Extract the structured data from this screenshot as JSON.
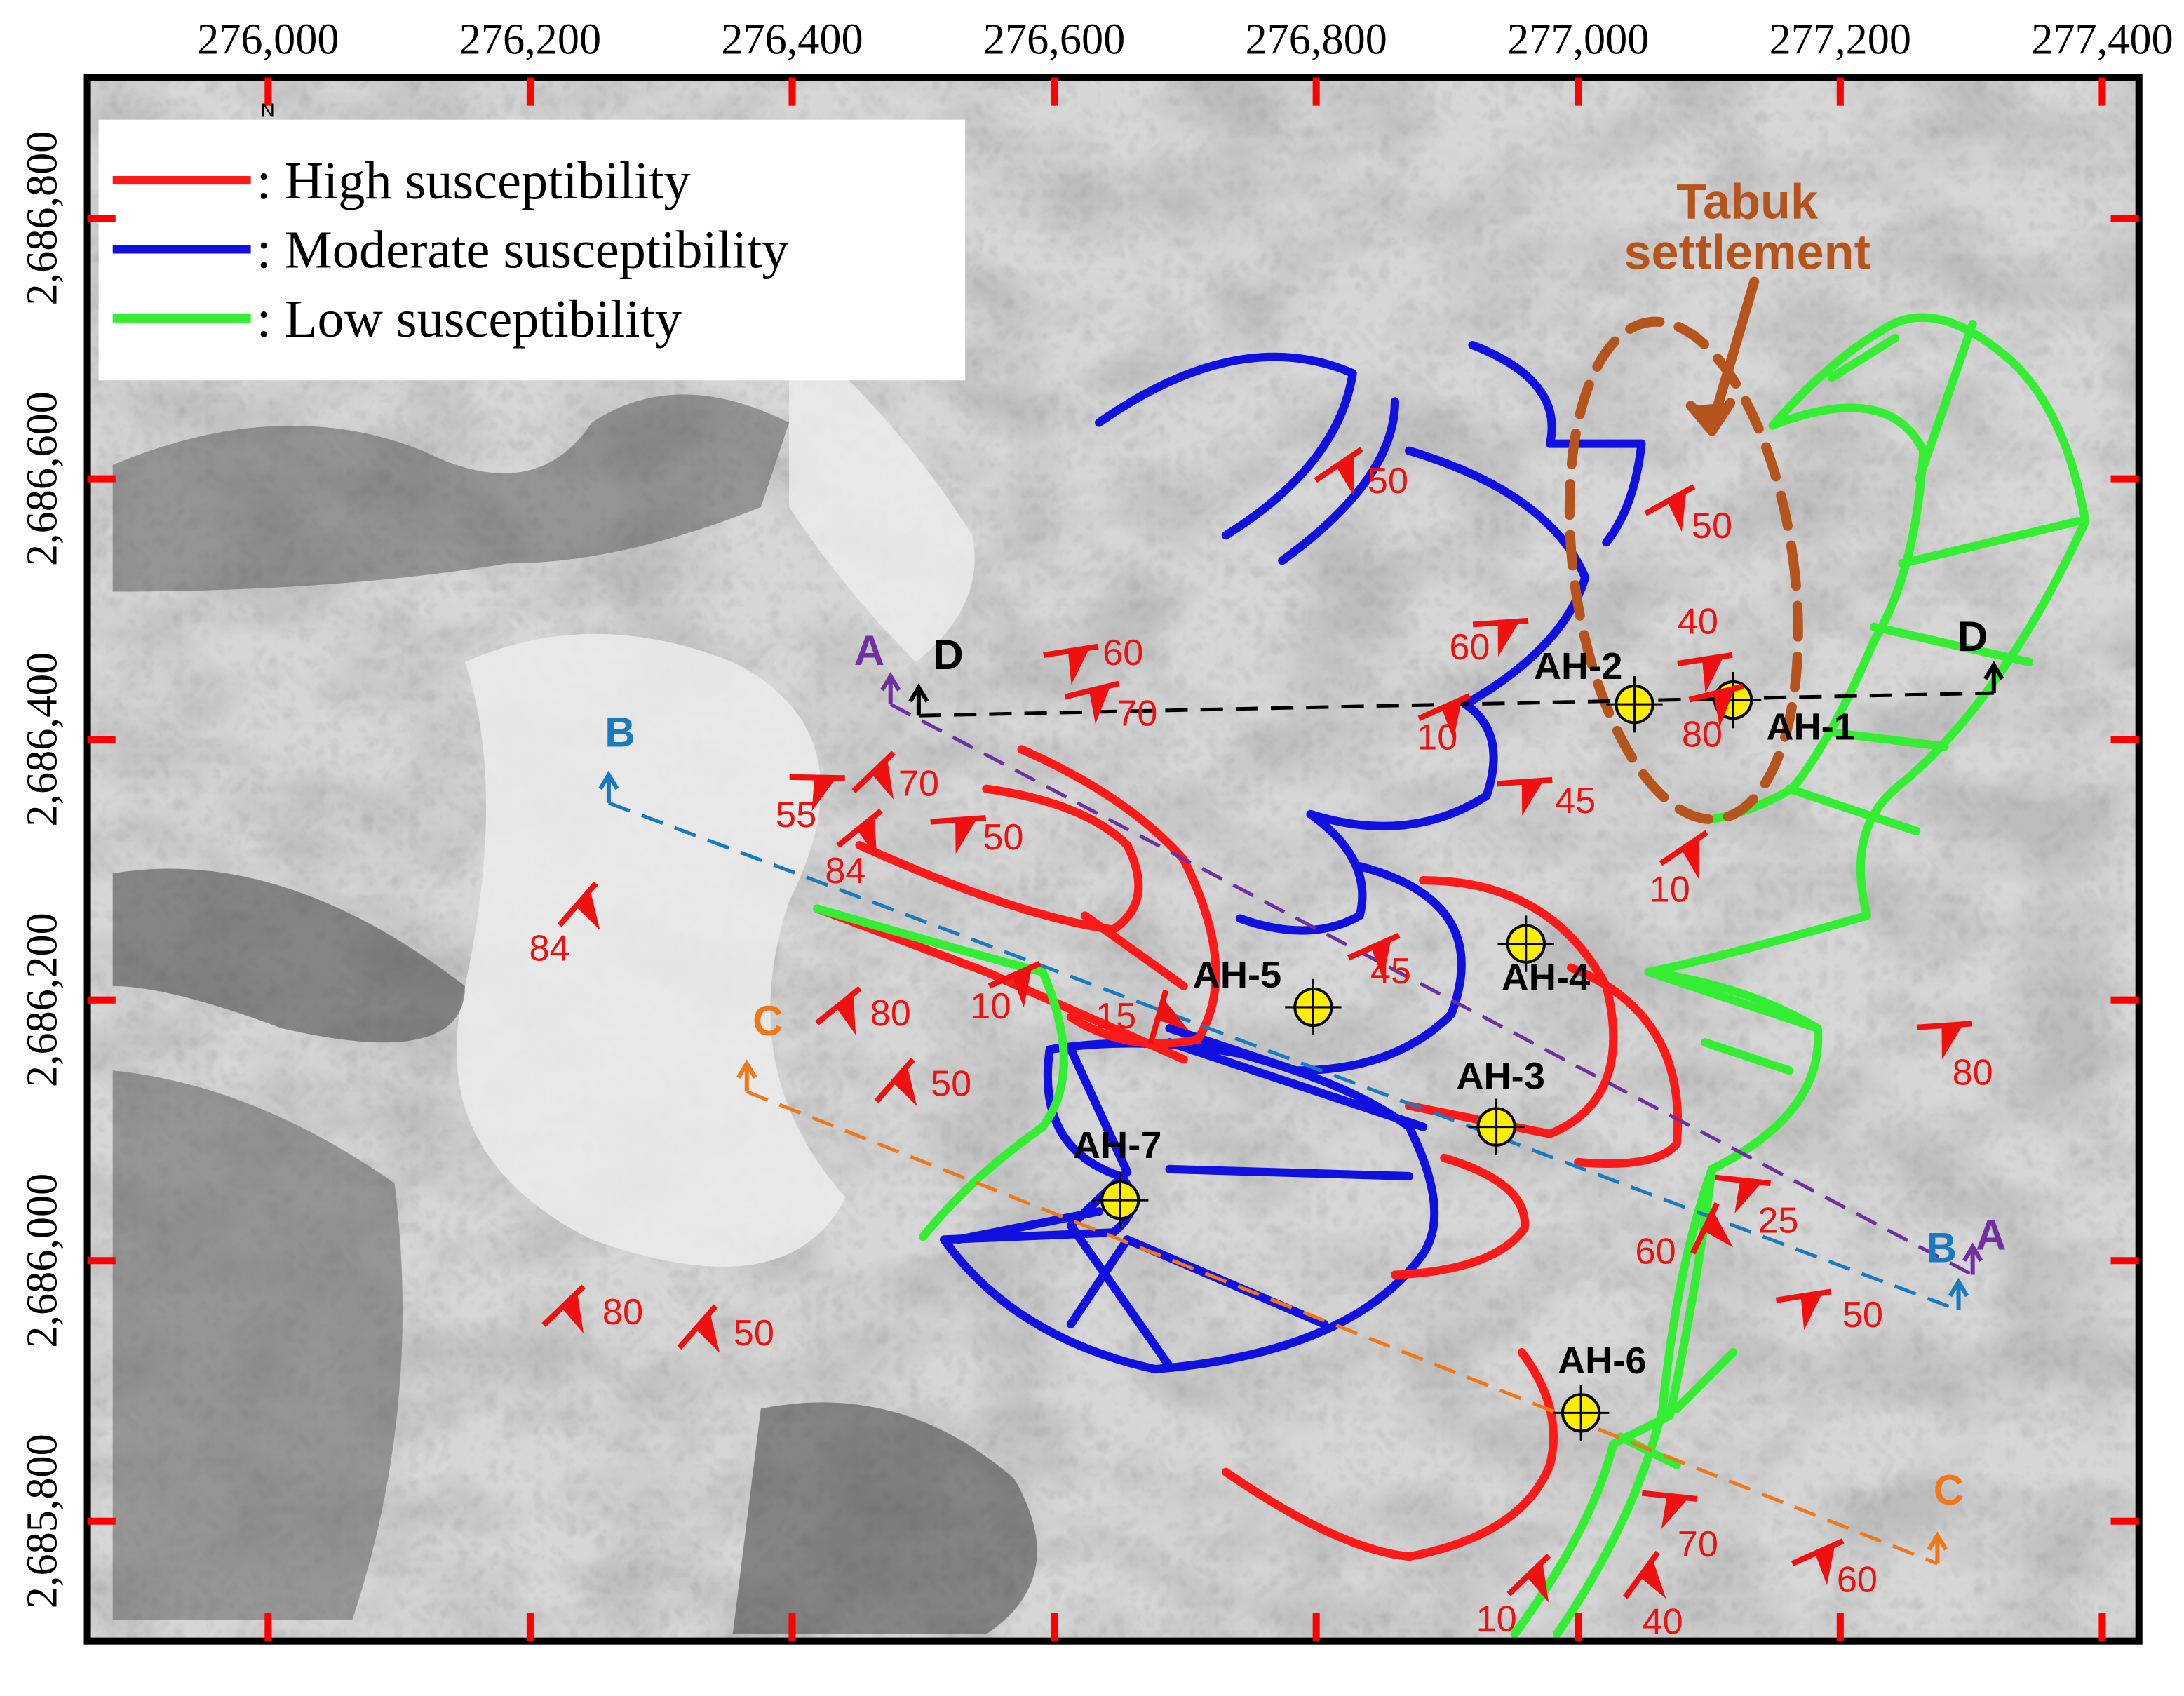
{
  "axes": {
    "xlim": [
      275862,
      277428
    ],
    "ylim": [
      2685708,
      2686908
    ],
    "x_ticks": [
      {
        "value": 276000,
        "label": "276,000"
      },
      {
        "value": 276200,
        "label": "276,200"
      },
      {
        "value": 276400,
        "label": "276,400"
      },
      {
        "value": 276600,
        "label": "276,600"
      },
      {
        "value": 276800,
        "label": "276,800"
      },
      {
        "value": 277000,
        "label": "277,000"
      },
      {
        "value": 277200,
        "label": "277,200"
      },
      {
        "value": 277400,
        "label": "277,400"
      }
    ],
    "y_ticks": [
      {
        "value": 2686800,
        "label": "2,686,800"
      },
      {
        "value": 2686600,
        "label": "2,686,600"
      },
      {
        "value": 2686400,
        "label": "2,686,400"
      },
      {
        "value": 2686200,
        "label": "2,686,200"
      },
      {
        "value": 2686000,
        "label": "2,686,000"
      },
      {
        "value": 2685800,
        "label": "2,685,800"
      }
    ]
  },
  "legend": [
    {
      "label": ": High susceptibility",
      "color": "#ff1a1a"
    },
    {
      "label": ": Moderate susceptibility",
      "color": "#1010e0"
    },
    {
      "label": ": Low susceptibility",
      "color": "#33ee33"
    }
  ],
  "settlement": {
    "lines": [
      "Tabuk",
      "settlement"
    ],
    "color": "#b5541c"
  },
  "north_label": "N",
  "boreholes": [
    "AH-1",
    "AH-2",
    "AH-3",
    "AH-4",
    "AH-5",
    "AH-6",
    "AH-7"
  ],
  "sections": [
    {
      "name": "A",
      "color": "#7030a0"
    },
    {
      "name": "B",
      "color": "#1a7abf"
    },
    {
      "name": "C",
      "color": "#f07818"
    },
    {
      "name": "D",
      "color": "#000000"
    }
  ],
  "dips": [
    50,
    50,
    40,
    80,
    60,
    10,
    45,
    10,
    60,
    70,
    70,
    55,
    50,
    84,
    84,
    45,
    10,
    15,
    80,
    50,
    80,
    25,
    60,
    50,
    80,
    50,
    70,
    60,
    10,
    40
  ]
}
